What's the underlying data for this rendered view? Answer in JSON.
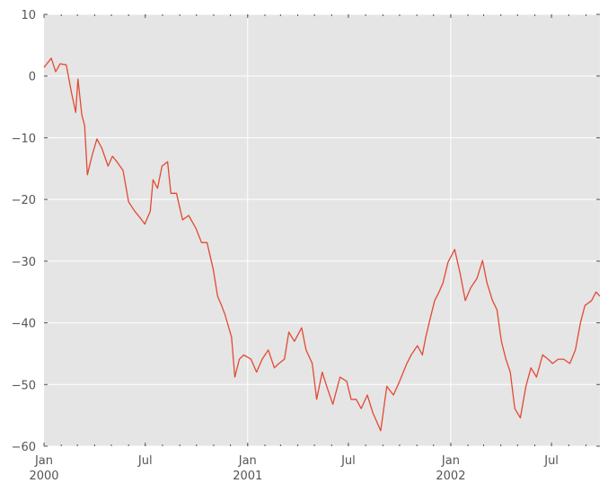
{
  "chart_data": {
    "type": "line",
    "title": "",
    "xlabel": "",
    "ylabel": "",
    "xlim": [
      "2000-01-01",
      "2002-09-26"
    ],
    "ylim": [
      -60,
      10
    ],
    "grid": true,
    "style": {
      "background": "#e5e5e5",
      "grid_color": "#ffffff",
      "line_color": "#E24A33",
      "tick_label_color": "#555555"
    },
    "yticks": [
      10,
      0,
      -10,
      -20,
      -30,
      -40,
      -50,
      -60
    ],
    "ytick_labels": [
      "10",
      "0",
      "−10",
      "−20",
      "−30",
      "−40",
      "−50",
      "−60"
    ],
    "xticks": [
      {
        "date": "2000-01-01",
        "label": "Jan",
        "sublabel": "2000",
        "major": true
      },
      {
        "date": "2000-07-01",
        "label": "Jul",
        "sublabel": "",
        "major": false
      },
      {
        "date": "2001-01-01",
        "label": "Jan",
        "sublabel": "2001",
        "major": true
      },
      {
        "date": "2001-07-01",
        "label": "Jul",
        "sublabel": "",
        "major": false
      },
      {
        "date": "2002-01-01",
        "label": "Jan",
        "sublabel": "2002",
        "major": true
      },
      {
        "date": "2002-07-01",
        "label": "Jul",
        "sublabel": "",
        "major": false
      }
    ],
    "series": [
      {
        "x": [
          "2000-01-01",
          "2000-01-14",
          "2000-01-22",
          "2000-01-30",
          "2000-02-10",
          "2000-02-20",
          "2000-02-27",
          "2000-03-02",
          "2000-03-09",
          "2000-03-14",
          "2000-03-19",
          "2000-03-27",
          "2000-04-05",
          "2000-04-14",
          "2000-04-25",
          "2000-05-03",
          "2000-05-11",
          "2000-05-22",
          "2000-06-01",
          "2000-06-12",
          "2000-06-22",
          "2000-06-30",
          "2000-07-10",
          "2000-07-15",
          "2000-07-23",
          "2000-07-31",
          "2000-08-10",
          "2000-08-16",
          "2000-08-26",
          "2000-09-06",
          "2000-09-17",
          "2000-09-30",
          "2000-10-10",
          "2000-10-20",
          "2000-10-31",
          "2000-11-08",
          "2000-11-15",
          "2000-11-21",
          "2000-12-03",
          "2000-12-09",
          "2000-12-17",
          "2000-12-25",
          "2001-01-07",
          "2001-01-17",
          "2001-01-27",
          "2001-02-07",
          "2001-02-18",
          "2001-02-26",
          "2001-03-08",
          "2001-03-16",
          "2001-03-26",
          "2001-04-08",
          "2001-04-16",
          "2001-04-27",
          "2001-05-05",
          "2001-05-15",
          "2001-05-23",
          "2001-06-03",
          "2001-06-16",
          "2001-06-28",
          "2001-07-06",
          "2001-07-15",
          "2001-07-24",
          "2001-08-04",
          "2001-08-14",
          "2001-08-28",
          "2001-09-08",
          "2001-09-20",
          "2001-10-01",
          "2001-10-14",
          "2001-10-22",
          "2001-11-02",
          "2001-11-11",
          "2001-11-17",
          "2001-11-25",
          "2001-12-03",
          "2001-12-11",
          "2001-12-18",
          "2001-12-27",
          "2002-01-08",
          "2002-01-18",
          "2002-01-27",
          "2002-02-06",
          "2002-02-17",
          "2002-02-27",
          "2002-03-07",
          "2002-03-17",
          "2002-03-25",
          "2002-04-02",
          "2002-04-10",
          "2002-04-18",
          "2002-04-26",
          "2002-05-06",
          "2002-05-16",
          "2002-05-25",
          "2002-06-04",
          "2002-06-15",
          "2002-06-25",
          "2002-07-03",
          "2002-07-13",
          "2002-07-23",
          "2002-08-03",
          "2002-08-13",
          "2002-08-22",
          "2002-08-30",
          "2002-09-11",
          "2002-09-19",
          "2002-09-26"
        ],
        "y": [
          1.4,
          2.9,
          0.7,
          2.0,
          1.8,
          -3,
          -5.9,
          -0.5,
          -6.3,
          -8,
          -16,
          -13,
          -10.2,
          -11.7,
          -14.6,
          -13,
          -13.9,
          -15.3,
          -20.4,
          -21.9,
          -23,
          -24,
          -21.9,
          -16.8,
          -18.2,
          -14.6,
          -13.9,
          -19,
          -19,
          -23.3,
          -22.6,
          -24.7,
          -27,
          -27,
          -31.3,
          -35.7,
          -37.2,
          -38.6,
          -42.3,
          -48.8,
          -45.9,
          -45.2,
          -45.9,
          -48,
          -45.9,
          -44.4,
          -47.3,
          -46.6,
          -45.9,
          -41.5,
          -43,
          -40.8,
          -44.4,
          -46.6,
          -52.4,
          -48,
          -50.3,
          -53.2,
          -48.8,
          -49.5,
          -52.4,
          -52.4,
          -53.9,
          -51.7,
          -54.6,
          -57.5,
          -50.3,
          -51.7,
          -49.5,
          -46.6,
          -45.2,
          -43.7,
          -45.2,
          -42.3,
          -39.3,
          -36.4,
          -35,
          -33.5,
          -30.2,
          -28.1,
          -32.1,
          -36.4,
          -34.3,
          -32.8,
          -29.9,
          -33.5,
          -36.4,
          -37.9,
          -43,
          -45.9,
          -48,
          -53.9,
          -55.4,
          -50.3,
          -47.3,
          -48.8,
          -45.2,
          -45.9,
          -46.6,
          -45.9,
          -45.9,
          -46.6,
          -44.4,
          -40,
          -37.2,
          -36.4,
          -35,
          -35.7
        ]
      }
    ]
  }
}
